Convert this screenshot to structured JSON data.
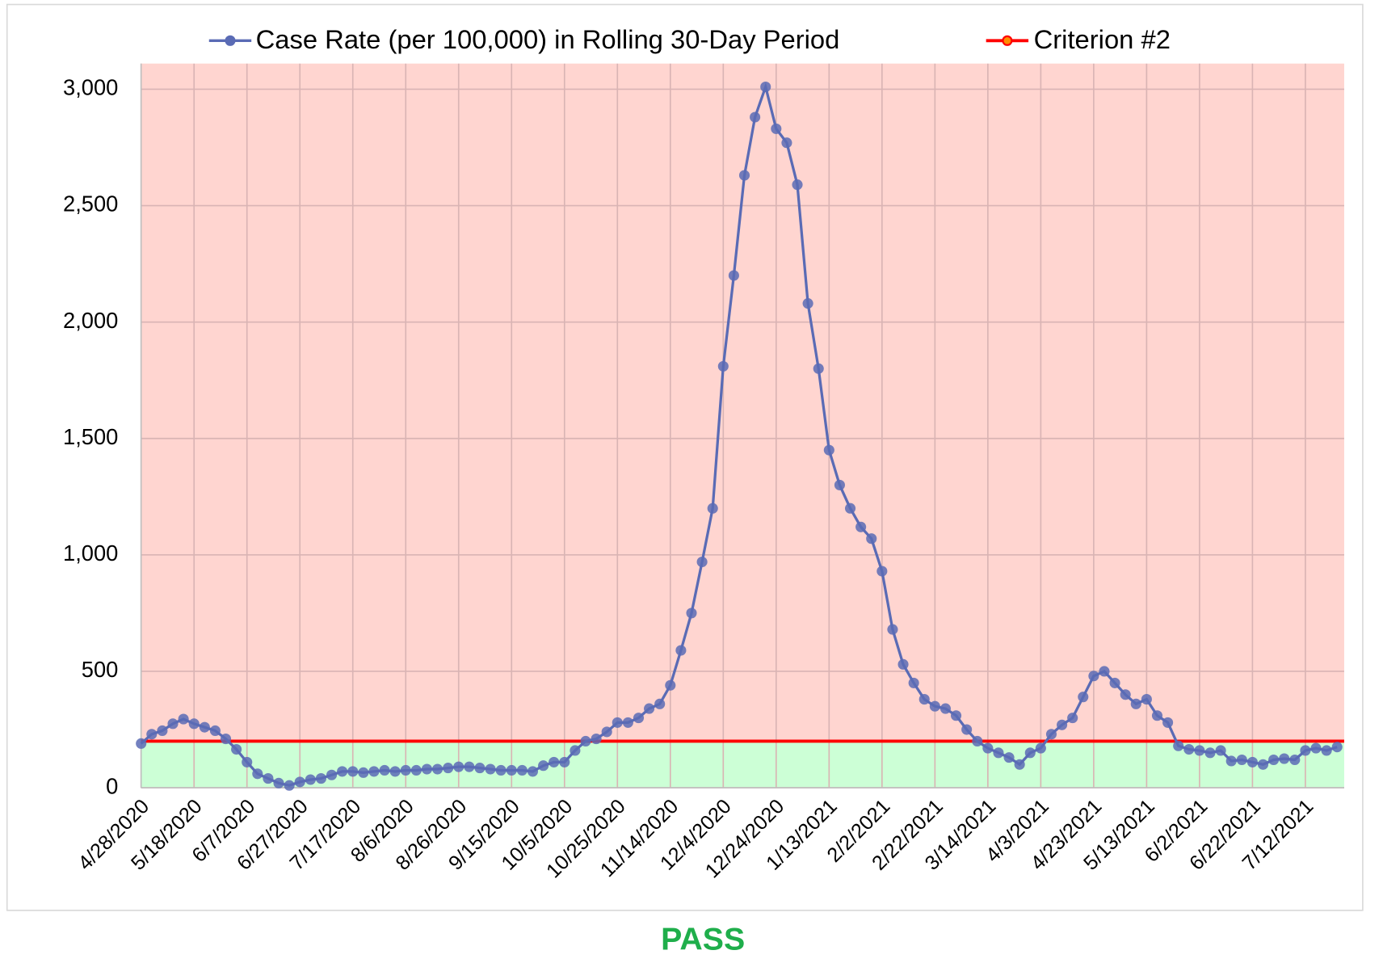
{
  "chart_data": {
    "type": "line",
    "annotation": "PASS",
    "categories": [
      "4/28/2020",
      null,
      null,
      null,
      null,
      "5/18/2020",
      null,
      null,
      null,
      null,
      "6/7/2020",
      null,
      null,
      null,
      null,
      "6/27/2020",
      null,
      null,
      null,
      null,
      "7/17/2020",
      null,
      null,
      null,
      null,
      "8/6/2020",
      null,
      null,
      null,
      null,
      "8/26/2020",
      null,
      null,
      null,
      null,
      "9/15/2020",
      null,
      null,
      null,
      null,
      "10/5/2020",
      null,
      null,
      null,
      null,
      "10/25/2020",
      null,
      null,
      null,
      null,
      "11/14/2020",
      null,
      null,
      null,
      null,
      "12/4/2020",
      null,
      null,
      null,
      null,
      "12/24/2020",
      null,
      null,
      null,
      null,
      "1/13/2021",
      null,
      null,
      null,
      null,
      "2/2/2021",
      null,
      null,
      null,
      null,
      "2/22/2021",
      null,
      null,
      null,
      null,
      "3/14/2021",
      null,
      null,
      null,
      null,
      "4/3/2021",
      null,
      null,
      null,
      null,
      "4/23/2021",
      null,
      null,
      null,
      null,
      "5/13/2021",
      null,
      null,
      null,
      null,
      "6/2/2021",
      null,
      null,
      null,
      null,
      "6/22/2021",
      null,
      null,
      null,
      null,
      "7/12/2021",
      null,
      null,
      null
    ],
    "series": [
      {
        "name": "Case Rate (per 100,000) in Rolling 30-Day Period",
        "color": "#5a6bb5",
        "values": [
          190,
          230,
          245,
          275,
          295,
          275,
          260,
          245,
          210,
          165,
          110,
          60,
          40,
          20,
          10,
          25,
          35,
          40,
          55,
          70,
          70,
          65,
          70,
          75,
          70,
          75,
          75,
          80,
          80,
          85,
          90,
          90,
          85,
          80,
          75,
          75,
          75,
          70,
          95,
          110,
          110,
          160,
          200,
          210,
          240,
          280,
          280,
          300,
          340,
          360,
          440,
          590,
          750,
          970,
          1200,
          1810,
          2200,
          2630,
          2880,
          3010,
          2830,
          2770,
          2590,
          2080,
          1800,
          1450,
          1300,
          1200,
          1120,
          1070,
          930,
          680,
          530,
          450,
          380,
          350,
          340,
          310,
          250,
          200,
          170,
          150,
          130,
          100,
          150,
          170,
          230,
          270,
          300,
          390,
          480,
          500,
          450,
          400,
          360,
          380,
          310,
          280,
          180,
          165,
          160,
          150,
          160,
          115,
          120,
          110,
          100,
          120,
          125,
          120,
          160,
          170,
          160,
          175
        ]
      }
    ],
    "reference_line": {
      "name": "Criterion #2",
      "color": "#ff0000",
      "value": 200
    },
    "above_color": "#ffd5d0",
    "below_color": "#ccffd6",
    "ylim": [
      0,
      3110
    ],
    "yticks": [
      0,
      500,
      {
        "value": 1000,
        "label": "1,000"
      },
      {
        "value": 1500,
        "label": "1,500"
      },
      {
        "value": 2000,
        "label": "2,000"
      },
      {
        "value": 2500,
        "label": "2,500"
      },
      {
        "value": 3000,
        "label": "3,000"
      }
    ],
    "grid": true
  }
}
